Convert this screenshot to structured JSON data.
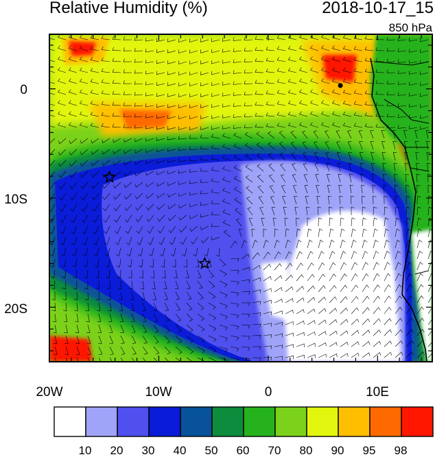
{
  "title": "Relative Humidity (%)",
  "datetime": "2018-10-17_15",
  "level": "850 hPa",
  "axes": {
    "lon_labels": [
      "20W",
      "10W",
      "0",
      "10E"
    ],
    "lat_labels": [
      "0",
      "10S",
      "20S"
    ]
  },
  "colorbar": {
    "labels": [
      "10",
      "20",
      "30",
      "40",
      "50",
      "60",
      "70",
      "80",
      "90",
      "95",
      "98"
    ],
    "colors": [
      "#ffffff",
      "#a0a4f8",
      "#5050ef",
      "#0a1cd8",
      "#07529a",
      "#0c8c3c",
      "#26b21c",
      "#7cd21a",
      "#e2f50c",
      "#ffbf00",
      "#ff6a00",
      "#ff1700"
    ]
  },
  "colors": {
    "land_outline": "#000000",
    "wind_barb": "#000000"
  },
  "markers": [
    {
      "type": "star",
      "lon": -14.5,
      "lat": -8.1
    },
    {
      "type": "star",
      "lon": -5.8,
      "lat": -16.0
    },
    {
      "type": "dot",
      "lon": 6.6,
      "lat": 0.3
    }
  ]
}
